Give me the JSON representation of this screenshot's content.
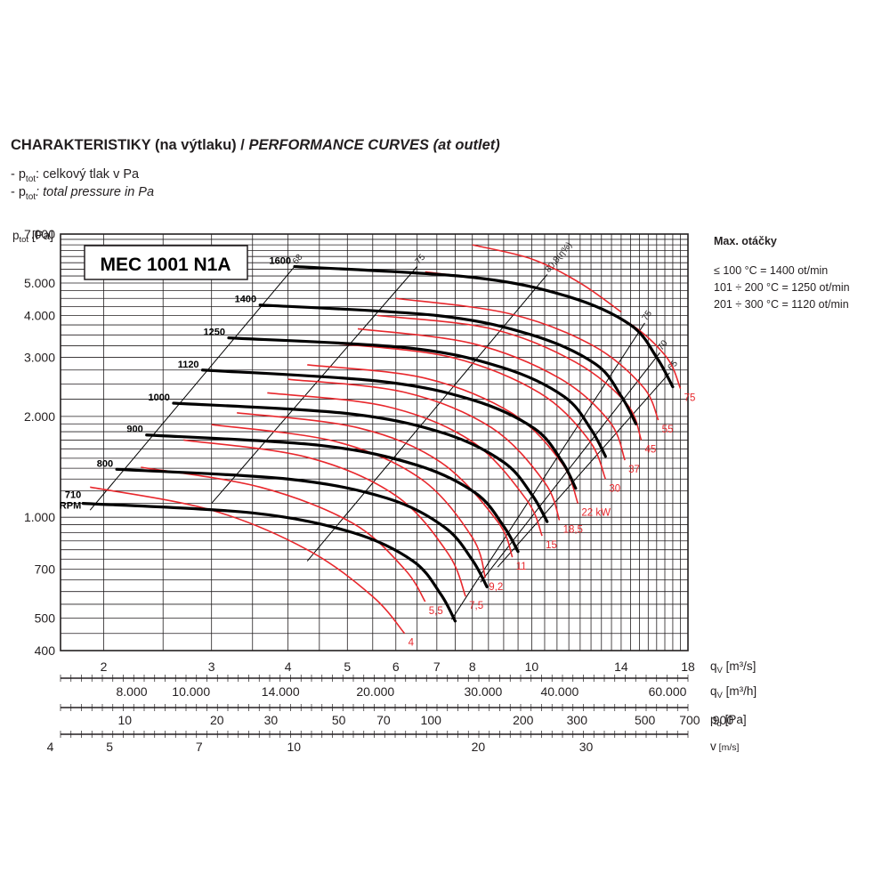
{
  "heading": {
    "cz": "CHARAKTERISTIKY",
    "cz_paren": "(na výtlaku) /",
    "en": "PERFORMANCE CURVES (at outlet)"
  },
  "legend": [
    {
      "prefix": "- p",
      "sub": "tot",
      "text": ": celkový tlak v Pa",
      "italic": false
    },
    {
      "prefix": "- p",
      "sub": "tot",
      "text": ": total pressure in Pa",
      "italic": true
    }
  ],
  "max_speed": {
    "title": "Max. otáčky",
    "lines": [
      "≤ 100 °C = 1400 ot/min",
      "101 ÷ 200 °C = 1250 ot/min",
      "201 ÷ 300 °C = 1120 ot/min"
    ]
  },
  "colors": {
    "grid": "#231f20",
    "speed_curve": "#000000",
    "power_curve": "#e8282d",
    "text": "#231f20"
  },
  "chart_data": {
    "type": "line",
    "model": "MEC 1001 N1A",
    "y_label_main": "p",
    "y_label_sub": "tot",
    "y_label_unit": "[Pa]",
    "y_scale": "log",
    "ylim": [
      400,
      7000
    ],
    "y_ticks": [
      "7.000",
      "5.000",
      "4.000",
      "3.000",
      "2.000",
      "1.000",
      "700",
      "500",
      "400"
    ],
    "x_scale": "log",
    "xlim": [
      1.7,
      18
    ],
    "grid": true,
    "axes": [
      {
        "label_main": "q",
        "label_sub": "V",
        "label_unit": "[m³/s]",
        "ticks": [
          "2",
          "3",
          "4",
          "5",
          "6",
          "7",
          "8",
          "10",
          "14",
          "18"
        ],
        "values": [
          2,
          3,
          4,
          5,
          6,
          7,
          8,
          10,
          14,
          18
        ]
      },
      {
        "label_main": "q",
        "label_sub": "V",
        "label_unit": "[m³/h]",
        "ticks": [
          "8.000",
          "10.000",
          "14.000",
          "20.000",
          "30.000",
          "40.000",
          "60.000"
        ],
        "values": [
          8000,
          10000,
          14000,
          20000,
          30000,
          40000,
          60000
        ]
      },
      {
        "label_main": "p",
        "label_sub": "d",
        "label_unit": "[Pa]",
        "ticks": [
          "10",
          "20",
          "30",
          "50",
          "70",
          "100",
          "200",
          "300",
          "500",
          "700",
          "900"
        ],
        "values": [
          10,
          20,
          30,
          50,
          70,
          100,
          200,
          300,
          500,
          700,
          900
        ]
      },
      {
        "label_main": "v",
        "label_sub": "",
        "label_unit": "[m/s]",
        "ticks": [
          "4",
          "5",
          "7",
          "10",
          "20",
          "30"
        ],
        "values": [
          4,
          5,
          7,
          10,
          20,
          30
        ]
      }
    ],
    "speed_curves": [
      {
        "name": "1600",
        "points": [
          [
            4.1,
            5600
          ],
          [
            8.0,
            5200
          ],
          [
            11.5,
            4550
          ],
          [
            14.5,
            3750
          ],
          [
            16.0,
            3000
          ],
          [
            17.0,
            2450
          ]
        ]
      },
      {
        "name": "1400",
        "points": [
          [
            3.6,
            4300
          ],
          [
            7.0,
            4000
          ],
          [
            10.0,
            3500
          ],
          [
            12.7,
            2870
          ],
          [
            14.0,
            2300
          ],
          [
            14.8,
            1900
          ]
        ]
      },
      {
        "name": "1250",
        "points": [
          [
            3.2,
            3430
          ],
          [
            6.3,
            3200
          ],
          [
            9.0,
            2790
          ],
          [
            11.3,
            2290
          ],
          [
            12.5,
            1830
          ],
          [
            13.2,
            1520
          ]
        ]
      },
      {
        "name": "1120",
        "points": [
          [
            2.9,
            2750
          ],
          [
            5.6,
            2550
          ],
          [
            8.0,
            2240
          ],
          [
            10.1,
            1840
          ],
          [
            11.2,
            1470
          ],
          [
            11.8,
            1220
          ]
        ]
      },
      {
        "name": "1000",
        "points": [
          [
            2.6,
            2190
          ],
          [
            5.0,
            2040
          ],
          [
            7.2,
            1780
          ],
          [
            9.0,
            1460
          ],
          [
            10.0,
            1170
          ],
          [
            10.6,
            970
          ]
        ]
      },
      {
        "name": "900",
        "points": [
          [
            2.35,
            1760
          ],
          [
            4.5,
            1640
          ],
          [
            6.5,
            1430
          ],
          [
            8.1,
            1180
          ],
          [
            9.0,
            940
          ],
          [
            9.5,
            790
          ]
        ]
      },
      {
        "name": "800",
        "points": [
          [
            2.1,
            1390
          ],
          [
            4.0,
            1300
          ],
          [
            5.8,
            1140
          ],
          [
            7.2,
            935
          ],
          [
            8.0,
            745
          ],
          [
            8.45,
            620
          ]
        ]
      },
      {
        "name": "710",
        "points": [
          [
            1.85,
            1100
          ],
          [
            3.5,
            1030
          ],
          [
            5.1,
            900
          ],
          [
            6.4,
            740
          ],
          [
            7.1,
            590
          ],
          [
            7.5,
            490
          ]
        ]
      }
    ],
    "speed_labels": [
      "1600",
      "1400",
      "1250",
      "1120",
      "1000",
      "900",
      "800",
      "710",
      "RPM"
    ],
    "efficiency_lines": [
      {
        "name": "68",
        "points": [
          [
            1.9,
            1050
          ],
          [
            4.1,
            5600
          ]
        ]
      },
      {
        "name": "75",
        "points": [
          [
            3.0,
            1100
          ],
          [
            6.5,
            5600
          ]
        ]
      },
      {
        "name": "80,8(η%)",
        "points": [
          [
            4.3,
            740
          ],
          [
            10.6,
            5300
          ]
        ]
      },
      {
        "name": "75",
        "points": [
          [
            7.4,
            495
          ],
          [
            15.3,
            3800
          ]
        ]
      },
      {
        "name": "70",
        "points": [
          [
            8.25,
            640
          ],
          [
            16.2,
            3100
          ]
        ]
      },
      {
        "name": "65",
        "points": [
          [
            8.8,
            710
          ],
          [
            16.8,
            2700
          ]
        ]
      }
    ],
    "power_curves": [
      {
        "name": "4",
        "points": [
          [
            1.9,
            1230
          ],
          [
            3.0,
            1050
          ],
          [
            4.3,
            800
          ],
          [
            5.5,
            580
          ],
          [
            6.2,
            450
          ]
        ]
      },
      {
        "name": "5,5",
        "points": [
          [
            2.3,
            1410
          ],
          [
            3.6,
            1230
          ],
          [
            5.1,
            960
          ],
          [
            6.2,
            700
          ],
          [
            6.7,
            560
          ]
        ]
      },
      {
        "name": "7,5",
        "points": [
          [
            2.7,
            1700
          ],
          [
            4.3,
            1510
          ],
          [
            6.0,
            1160
          ],
          [
            7.3,
            780
          ],
          [
            7.8,
            580
          ]
        ]
      },
      {
        "name": "9,2",
        "points": [
          [
            3.0,
            1890
          ],
          [
            4.8,
            1680
          ],
          [
            6.6,
            1300
          ],
          [
            8.0,
            870
          ],
          [
            8.4,
            660
          ]
        ]
      },
      {
        "name": "11",
        "points": [
          [
            3.3,
            2050
          ],
          [
            5.2,
            1850
          ],
          [
            7.1,
            1460
          ],
          [
            8.8,
            970
          ],
          [
            9.3,
            760
          ]
        ]
      },
      {
        "name": "15",
        "points": [
          [
            3.7,
            2350
          ],
          [
            5.8,
            2140
          ],
          [
            8.0,
            1680
          ],
          [
            9.8,
            1130
          ],
          [
            10.4,
            880
          ]
        ]
      },
      {
        "name": "18,5",
        "points": [
          [
            4.0,
            2580
          ],
          [
            6.2,
            2360
          ],
          [
            8.6,
            1850
          ],
          [
            10.5,
            1270
          ],
          [
            11.1,
            980
          ]
        ]
      },
      {
        "name": "22 kW",
        "points": [
          [
            4.3,
            2850
          ],
          [
            6.7,
            2600
          ],
          [
            9.3,
            2040
          ],
          [
            11.2,
            1450
          ],
          [
            11.9,
            1100
          ]
        ]
      },
      {
        "name": "30",
        "points": [
          [
            4.8,
            3300
          ],
          [
            7.4,
            3000
          ],
          [
            10.3,
            2350
          ],
          [
            12.4,
            1700
          ],
          [
            13.2,
            1300
          ]
        ]
      },
      {
        "name": "37",
        "points": [
          [
            5.2,
            3650
          ],
          [
            8.0,
            3300
          ],
          [
            11.1,
            2600
          ],
          [
            13.4,
            1930
          ],
          [
            14.2,
            1480
          ]
        ]
      },
      {
        "name": "45",
        "points": [
          [
            5.6,
            4000
          ],
          [
            8.6,
            3650
          ],
          [
            11.8,
            2900
          ],
          [
            14.3,
            2180
          ],
          [
            15.1,
            1700
          ]
        ]
      },
      {
        "name": "55",
        "points": [
          [
            6.0,
            4500
          ],
          [
            9.2,
            4050
          ],
          [
            12.6,
            3250
          ],
          [
            15.2,
            2450
          ],
          [
            16.1,
            1950
          ]
        ]
      },
      {
        "name": "75",
        "points": [
          [
            6.7,
            5400
          ],
          [
            10.2,
            4850
          ],
          [
            13.9,
            3950
          ],
          [
            16.5,
            3050
          ],
          [
            17.5,
            2420
          ]
        ]
      },
      {
        "name": "",
        "points": [
          [
            8.0,
            6500
          ],
          [
            10.0,
            5900
          ],
          [
            12.0,
            5000
          ],
          [
            14.0,
            4100
          ]
        ]
      }
    ]
  }
}
